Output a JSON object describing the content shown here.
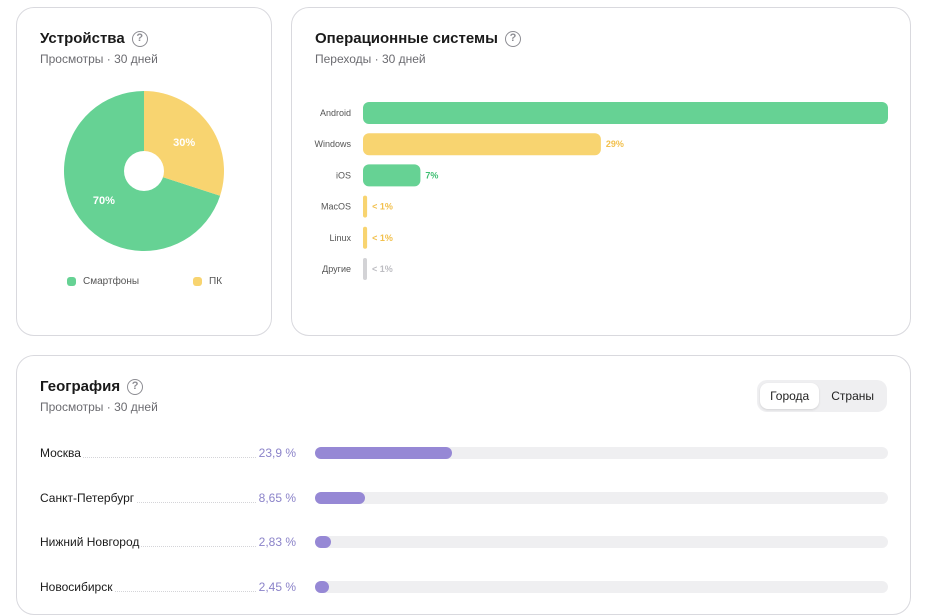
{
  "devices": {
    "title": "Устройства",
    "subtitle": "Просмотры · 30 дней",
    "help_icon": "question-circle-icon",
    "chart_data": {
      "type": "pie",
      "slices": [
        {
          "name": "Смартфоны",
          "value": 70,
          "label": "70%",
          "color": "#66d294"
        },
        {
          "name": "ПК",
          "value": 30,
          "label": "30%",
          "color": "#f8d470"
        }
      ]
    },
    "legend": [
      {
        "label": "Смартфоны",
        "color": "#66d294"
      },
      {
        "label": "ПК",
        "color": "#f8d470"
      }
    ]
  },
  "os": {
    "title": "Операционные системы",
    "subtitle": "Переходы · 30 дней",
    "help_icon": "question-circle-icon",
    "chart_data": {
      "type": "bar",
      "orientation": "horizontal",
      "categories": [
        "Android",
        "Windows",
        "iOS",
        "MacOS",
        "Linux",
        "Другие"
      ],
      "values": [
        64,
        29,
        7,
        0.5,
        0.5,
        0.3
      ],
      "labels": [
        "",
        "29%",
        "7%",
        "< 1%",
        "< 1%",
        "< 1%"
      ],
      "colors": [
        "#66d294",
        "#f8d470",
        "#66d294",
        "#f8d470",
        "#f8d470",
        "#d3d3d6"
      ],
      "label_colors": [
        "#66d294",
        "#f2c04d",
        "#3fbf72",
        "#f2c04d",
        "#f2c04d",
        "#bdbdc2"
      ]
    }
  },
  "geo": {
    "title": "География",
    "subtitle": "Просмотры · 30 дней",
    "help_icon": "question-circle-icon",
    "toggle": {
      "cities": "Города",
      "countries": "Страны",
      "active": "cities"
    },
    "rows": [
      {
        "name": "Москва",
        "pct": "23,9 %",
        "value": 23.9
      },
      {
        "name": "Санкт-Петербург",
        "pct": "8,65 %",
        "value": 8.65
      },
      {
        "name": "Нижний Новгород",
        "pct": "2,83 %",
        "value": 2.83
      },
      {
        "name": "Новосибирск",
        "pct": "2,45 %",
        "value": 2.45
      }
    ]
  }
}
